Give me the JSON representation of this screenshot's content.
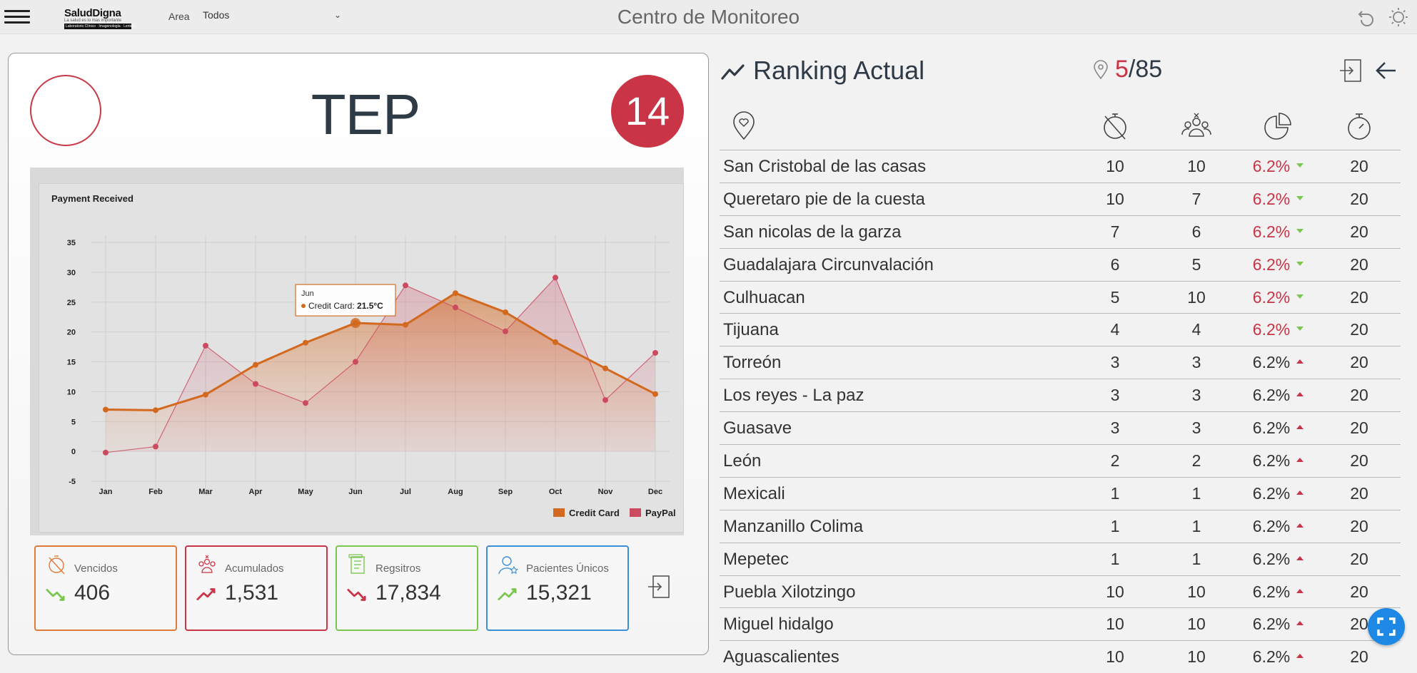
{
  "header": {
    "title": "Centro de Monitoreo",
    "logo_brand": "SaludDigna",
    "logo_tag": "La salud es lo mas importante",
    "logo_strip": "Laboratorio Clínico · Imagenología · Lentes",
    "area_label": "Area",
    "area_value": "Todos"
  },
  "left": {
    "title": "TEP",
    "badge": "14"
  },
  "stats": [
    {
      "label": "Vencidos",
      "value": "406",
      "trend": "down",
      "color": "#e07a3a"
    },
    {
      "label": "Acumulados",
      "value": "1,531",
      "trend": "up",
      "color": "#c93446"
    },
    {
      "label": "Regsitros",
      "value": "17,834",
      "trend": "down",
      "color": "#7ac74f"
    },
    {
      "label": "Pacientes Únicos",
      "value": "15,321",
      "trend": "up",
      "color": "#3a8fd9"
    }
  ],
  "chart_data": {
    "type": "line",
    "title": "Payment Received",
    "categories": [
      "Jan",
      "Feb",
      "Mar",
      "Apr",
      "May",
      "Jun",
      "Jul",
      "Aug",
      "Sep",
      "Oct",
      "Nov",
      "Dec"
    ],
    "series": [
      {
        "name": "Credit Card",
        "color": "#d2691e",
        "values": [
          7.0,
          6.9,
          9.5,
          14.5,
          18.2,
          21.5,
          21.2,
          26.5,
          23.3,
          18.3,
          13.9,
          9.6
        ]
      },
      {
        "name": "PayPal",
        "color": "#cc4a5f",
        "values": [
          -0.2,
          0.8,
          17.7,
          11.3,
          8.1,
          15.0,
          27.8,
          24.1,
          20.1,
          29.1,
          8.6,
          16.5
        ]
      }
    ],
    "ylim": [
      -5,
      35
    ],
    "yticks": [
      -5,
      0,
      5,
      10,
      15,
      20,
      25,
      30,
      35
    ],
    "grid": true,
    "legend": "bottom-right",
    "tooltip": {
      "category": "Jun",
      "series": "Credit Card",
      "label": "Credit Card:",
      "value": "21.5°C"
    }
  },
  "ranking": {
    "title": "Ranking Actual",
    "count_current": "5",
    "count_total": "/85",
    "rows": [
      {
        "name": "San Cristobal de las casas",
        "a": "10",
        "b": "10",
        "pct": "6.2%",
        "dir": "down"
      },
      {
        "name": "Queretaro pie de la cuesta",
        "a": "10",
        "b": "7",
        "pct": "6.2%",
        "dir": "down"
      },
      {
        "name": "San nicolas de la garza",
        "a": "7",
        "b": "6",
        "pct": "6.2%",
        "dir": "down"
      },
      {
        "name": "Guadalajara Circunvalación",
        "a": "6",
        "b": "5",
        "pct": "6.2%",
        "dir": "down"
      },
      {
        "name": "Culhuacan",
        "a": "5",
        "b": "10",
        "pct": "6.2%",
        "dir": "down"
      },
      {
        "name": "Tijuana",
        "a": "4",
        "b": "4",
        "pct": "6.2%",
        "dir": "down"
      },
      {
        "name": "Torreón",
        "a": "3",
        "b": "3",
        "pct": "6.2%",
        "dir": "up"
      },
      {
        "name": "Los reyes - La paz",
        "a": "3",
        "b": "3",
        "pct": "6.2%",
        "dir": "up"
      },
      {
        "name": "Guasave",
        "a": "3",
        "b": "3",
        "pct": "6.2%",
        "dir": "up"
      },
      {
        "name": "León",
        "a": "2",
        "b": "2",
        "pct": "6.2%",
        "dir": "up"
      },
      {
        "name": "Mexicali",
        "a": "1",
        "b": "1",
        "pct": "6.2%",
        "dir": "up"
      },
      {
        "name": "Manzanillo Colima",
        "a": "1",
        "b": "1",
        "pct": "6.2%",
        "dir": "up"
      },
      {
        "name": "Mepetec",
        "a": "1",
        "b": "1",
        "pct": "6.2%",
        "dir": "up"
      },
      {
        "name": "Puebla Xilotzingo",
        "a": "10",
        "b": "10",
        "pct": "6.2%",
        "dir": "up"
      },
      {
        "name": "Miguel hidalgo",
        "a": "10",
        "b": "10",
        "pct": "6.2%",
        "dir": "up"
      },
      {
        "name": "Aguascalientes",
        "a": "10",
        "b": "10",
        "pct": "6.2%",
        "dir": "up"
      }
    ],
    "target": "20"
  },
  "colors": {
    "accent_red": "#c93446",
    "arrow_green": "#7ac74f",
    "fab_blue": "#1e88e5"
  }
}
